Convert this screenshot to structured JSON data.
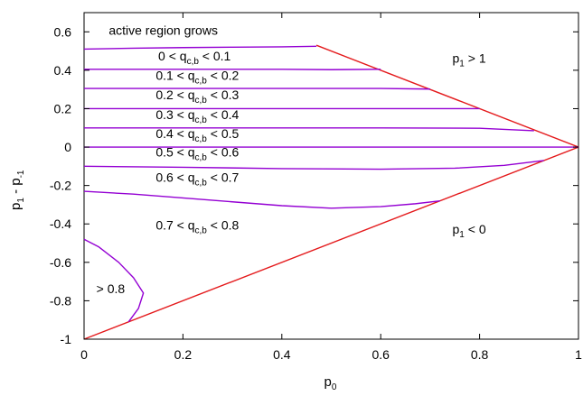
{
  "chart_data": {
    "type": "line",
    "title": "",
    "xlabel": "p",
    "xlabel_sub": "0",
    "ylabel": "p",
    "ylabel_sub1": "1",
    "ylabel_mid": " - p",
    "ylabel_sub2": "-1",
    "xlim": [
      0,
      1
    ],
    "ylim": [
      -1,
      0.7
    ],
    "xticks": [
      0,
      0.2,
      0.4,
      0.6,
      0.8,
      1
    ],
    "xtick_labels": [
      "0",
      "0.2",
      "0.4",
      "0.6",
      "0.8",
      "1"
    ],
    "yticks": [
      -1,
      -0.8,
      -0.6,
      -0.4,
      -0.2,
      0,
      0.2,
      0.4,
      0.6
    ],
    "ytick_labels": [
      "-1",
      "-0.8",
      "-0.6",
      "-0.4",
      "-0.2",
      "0",
      "0.2",
      "0.4",
      "0.6"
    ],
    "grid": false,
    "legend": "none",
    "colors": {
      "boundary": "#e41a1c",
      "contour": "#9400d3",
      "axis": "#000000"
    },
    "boundary_lines": [
      {
        "points": [
          [
            0,
            -1
          ],
          [
            1,
            0
          ]
        ]
      },
      {
        "points": [
          [
            0.47,
            0.53
          ],
          [
            1,
            0
          ]
        ]
      }
    ],
    "contours": [
      {
        "points": [
          [
            0,
            0.51
          ],
          [
            0.1,
            0.515
          ],
          [
            0.2,
            0.518
          ],
          [
            0.3,
            0.52
          ],
          [
            0.4,
            0.522
          ],
          [
            0.47,
            0.525
          ]
        ]
      },
      {
        "points": [
          [
            0,
            0.405
          ],
          [
            0.1,
            0.405
          ],
          [
            0.2,
            0.405
          ],
          [
            0.3,
            0.405
          ],
          [
            0.4,
            0.405
          ],
          [
            0.5,
            0.403
          ],
          [
            0.6,
            0.405
          ]
        ]
      },
      {
        "points": [
          [
            0,
            0.305
          ],
          [
            0.2,
            0.305
          ],
          [
            0.4,
            0.305
          ],
          [
            0.6,
            0.305
          ],
          [
            0.7,
            0.302
          ]
        ]
      },
      {
        "points": [
          [
            0,
            0.2
          ],
          [
            0.2,
            0.2
          ],
          [
            0.4,
            0.2
          ],
          [
            0.6,
            0.2
          ],
          [
            0.8,
            0.2
          ]
        ]
      },
      {
        "points": [
          [
            0,
            0.1
          ],
          [
            0.2,
            0.1
          ],
          [
            0.4,
            0.1
          ],
          [
            0.6,
            0.1
          ],
          [
            0.8,
            0.098
          ],
          [
            0.91,
            0.085
          ]
        ]
      },
      {
        "points": [
          [
            0,
            0
          ],
          [
            0.2,
            0
          ],
          [
            0.4,
            0
          ],
          [
            0.6,
            0
          ],
          [
            0.8,
            0
          ],
          [
            1,
            0
          ]
        ]
      },
      {
        "points": [
          [
            0,
            -0.1
          ],
          [
            0.2,
            -0.105
          ],
          [
            0.4,
            -0.112
          ],
          [
            0.6,
            -0.115
          ],
          [
            0.75,
            -0.11
          ],
          [
            0.85,
            -0.095
          ],
          [
            0.93,
            -0.07
          ]
        ]
      },
      {
        "points": [
          [
            0,
            -0.23
          ],
          [
            0.1,
            -0.245
          ],
          [
            0.2,
            -0.265
          ],
          [
            0.3,
            -0.285
          ],
          [
            0.4,
            -0.305
          ],
          [
            0.5,
            -0.318
          ],
          [
            0.6,
            -0.31
          ],
          [
            0.67,
            -0.295
          ],
          [
            0.72,
            -0.28
          ]
        ]
      },
      {
        "points": [
          [
            0,
            -0.48
          ],
          [
            0.03,
            -0.52
          ],
          [
            0.07,
            -0.6
          ],
          [
            0.1,
            -0.68
          ],
          [
            0.12,
            -0.76
          ],
          [
            0.11,
            -0.84
          ],
          [
            0.09,
            -0.91
          ]
        ]
      }
    ],
    "annotations": [
      {
        "text": "active region grows",
        "x": 0.05,
        "y": 0.585
      },
      {
        "pre": "0 < q",
        "sub": "c,b",
        "post": " < 0.1",
        "x": 0.15,
        "y": 0.45
      },
      {
        "pre": "0.1 < q",
        "sub": "c,b",
        "post": " < 0.2",
        "x": 0.145,
        "y": 0.35
      },
      {
        "pre": "0.2 < q",
        "sub": "c,b",
        "post": " < 0.3",
        "x": 0.145,
        "y": 0.25
      },
      {
        "pre": "0.3 < q",
        "sub": "c,b",
        "post": " < 0.4",
        "x": 0.145,
        "y": 0.145
      },
      {
        "pre": "0.4 < q",
        "sub": "c,b",
        "post": " < 0.5",
        "x": 0.145,
        "y": 0.048
      },
      {
        "pre": "0.5 < q",
        "sub": "c,b",
        "post": " < 0.6",
        "x": 0.145,
        "y": -0.05
      },
      {
        "pre": "0.6 < q",
        "sub": "c,b",
        "post": " < 0.7",
        "x": 0.145,
        "y": -0.18
      },
      {
        "pre": "0.7 < q",
        "sub": "c,b",
        "post": " < 0.8",
        "x": 0.145,
        "y": -0.43
      },
      {
        "pre": "p",
        "sub": "1",
        "post": " > 1",
        "x": 0.745,
        "y": 0.44
      },
      {
        "pre": "p",
        "sub": "1",
        "post": " < 0",
        "x": 0.745,
        "y": -0.45
      },
      {
        "text": "> 0.8",
        "x": 0.025,
        "y": -0.76
      }
    ]
  }
}
